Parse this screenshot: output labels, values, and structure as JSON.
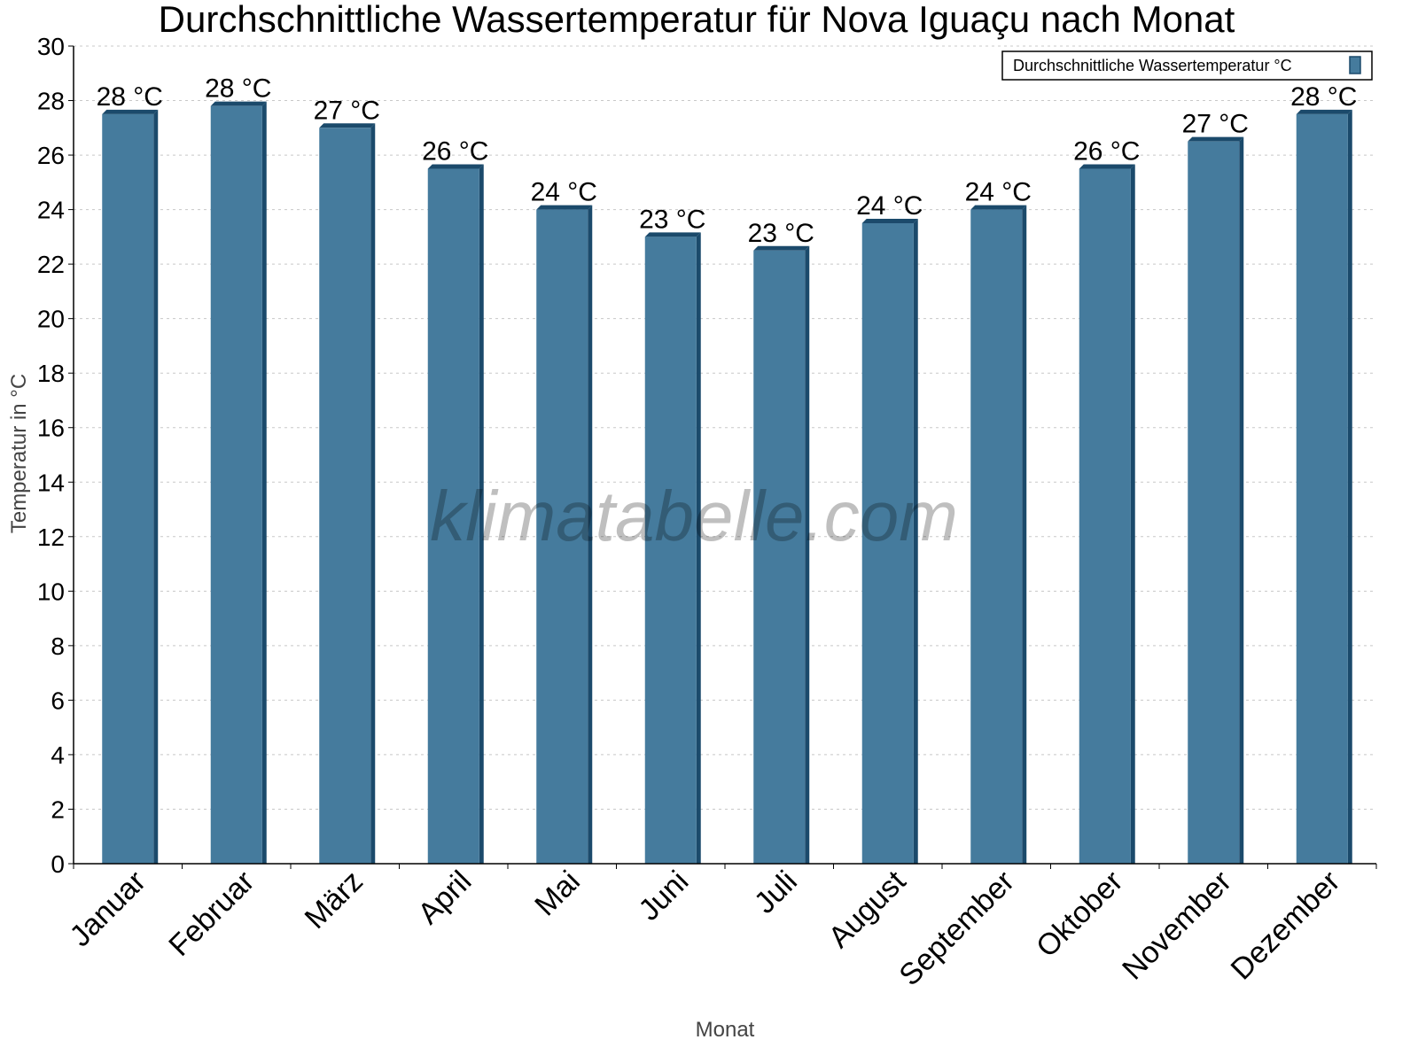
{
  "chart_data": {
    "type": "bar",
    "title": "Durchschnittliche Wassertemperatur für Nova Iguaçu nach Monat",
    "xlabel": "Monat",
    "ylabel": "Temperatur in °C",
    "ylim": [
      0,
      30
    ],
    "yticks": [
      0,
      2,
      4,
      6,
      8,
      10,
      12,
      14,
      16,
      18,
      20,
      22,
      24,
      26,
      28,
      30
    ],
    "grid": true,
    "legend_position": "top-right",
    "categories": [
      "Januar",
      "Februar",
      "März",
      "April",
      "Mai",
      "Juni",
      "Juli",
      "August",
      "September",
      "Oktober",
      "November",
      "Dezember"
    ],
    "series": [
      {
        "name": "Durchschnittliche Wassertemperatur °C",
        "color": "#457b9d",
        "values": [
          27.5,
          27.8,
          27.0,
          25.5,
          24.0,
          23.0,
          22.5,
          23.5,
          24.0,
          25.5,
          26.5,
          27.5
        ],
        "labels": [
          "28 °C",
          "28 °C",
          "27 °C",
          "26 °C",
          "24 °C",
          "23 °C",
          "23 °C",
          "24 °C",
          "24 °C",
          "26 °C",
          "27 °C",
          "28 °C"
        ]
      }
    ],
    "watermark": "klimatabelle.com"
  }
}
